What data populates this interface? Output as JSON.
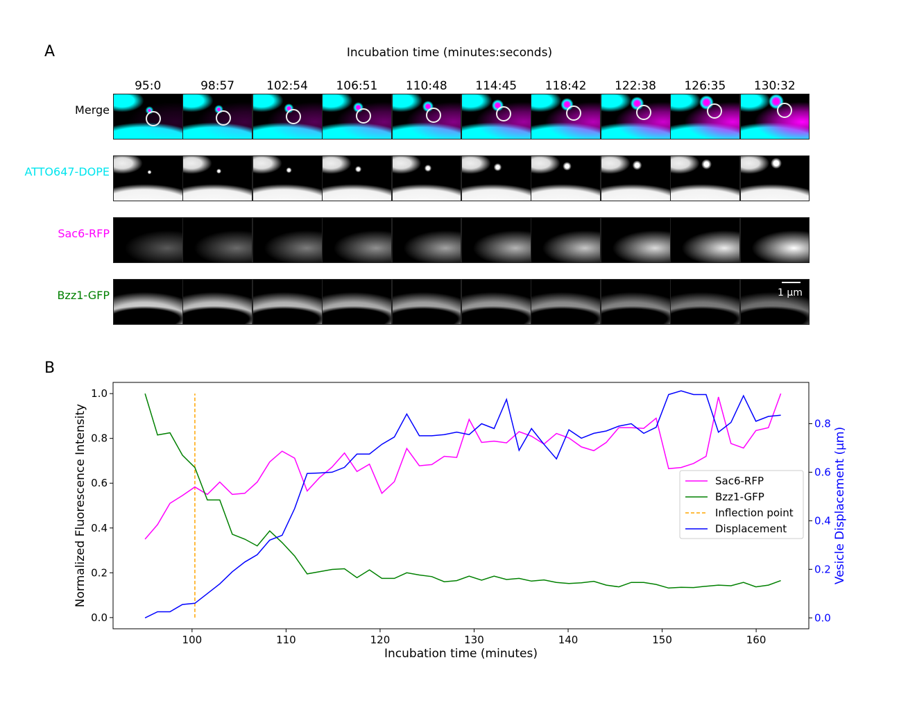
{
  "panel_a": {
    "letter": "A",
    "header": "Incubation time (minutes:seconds)",
    "timepoints": [
      "95:0",
      "98:57",
      "102:54",
      "106:51",
      "110:48",
      "114:45",
      "118:42",
      "122:38",
      "126:35",
      "130:32"
    ],
    "rows": [
      {
        "label": "Merge",
        "color": "#000000"
      },
      {
        "label": "ATTO647-DOPE",
        "color": "#00e5ee"
      },
      {
        "label": "Sac6-RFP",
        "color": "#ff00ff"
      },
      {
        "label": "Bzz1-GFP",
        "color": "#008000"
      }
    ],
    "scale_bar": "1 μm",
    "merge_colors": {
      "cyan": "#00ffff",
      "magenta": "#ff00ff"
    }
  },
  "panel_b": {
    "letter": "B"
  },
  "chart_data": {
    "type": "line",
    "xlabel": "Incubation time (minutes)",
    "ylabel": "Normalized Fluorescence Intensity",
    "y2label": "Vesicle Displacement (μm)",
    "xlim": [
      91.6,
      165.6
    ],
    "ylim": [
      -0.05,
      1.05
    ],
    "y2lim": [
      -0.045,
      0.97
    ],
    "xticks": [
      100,
      110,
      120,
      130,
      140,
      150,
      160
    ],
    "yticks": [
      0.0,
      0.2,
      0.4,
      0.6,
      0.8,
      1.0
    ],
    "y2ticks": [
      0.0,
      0.2,
      0.4,
      0.6,
      0.8
    ],
    "legend_position": "center-right",
    "x": [
      95.0,
      96.33,
      97.65,
      98.98,
      100.3,
      101.63,
      102.95,
      104.28,
      105.61,
      106.93,
      108.26,
      109.58,
      110.91,
      112.24,
      113.56,
      114.89,
      116.21,
      117.54,
      118.87,
      120.19,
      121.52,
      122.84,
      124.17,
      125.5,
      126.82,
      128.15,
      129.47,
      130.8,
      132.13,
      133.45,
      134.78,
      136.1,
      137.43,
      138.76,
      140.08,
      141.41,
      142.73,
      144.06,
      145.39,
      146.71,
      148.04,
      149.36,
      150.69,
      152.02,
      153.34,
      154.67,
      155.99,
      157.32,
      158.65,
      159.97,
      161.3,
      162.62
    ],
    "series": [
      {
        "name": "Sac6-RFP",
        "axis": "left",
        "color": "#ff00ff",
        "dashed": false,
        "values": [
          0.35,
          0.415,
          0.51,
          0.545,
          0.583,
          0.55,
          0.605,
          0.55,
          0.555,
          0.605,
          0.695,
          0.743,
          0.712,
          0.565,
          0.625,
          0.672,
          0.735,
          0.652,
          0.685,
          0.555,
          0.607,
          0.755,
          0.678,
          0.683,
          0.72,
          0.715,
          0.885,
          0.782,
          0.788,
          0.78,
          0.83,
          0.81,
          0.775,
          0.822,
          0.802,
          0.762,
          0.745,
          0.782,
          0.848,
          0.848,
          0.845,
          0.89,
          0.665,
          0.67,
          0.688,
          0.72,
          0.985,
          0.777,
          0.757,
          0.835,
          0.848,
          1.0
        ]
      },
      {
        "name": "Bzz1-GFP",
        "axis": "left",
        "color": "#008000",
        "dashed": false,
        "values": [
          1.0,
          0.815,
          0.825,
          0.725,
          0.67,
          0.525,
          0.525,
          0.372,
          0.35,
          0.32,
          0.387,
          0.335,
          0.275,
          0.195,
          0.205,
          0.215,
          0.218,
          0.178,
          0.213,
          0.175,
          0.175,
          0.2,
          0.19,
          0.183,
          0.16,
          0.165,
          0.185,
          0.167,
          0.185,
          0.17,
          0.175,
          0.163,
          0.168,
          0.157,
          0.152,
          0.155,
          0.162,
          0.145,
          0.137,
          0.157,
          0.157,
          0.148,
          0.132,
          0.135,
          0.134,
          0.14,
          0.145,
          0.142,
          0.157,
          0.137,
          0.145,
          0.165
        ]
      },
      {
        "name": "Displacement",
        "axis": "right",
        "color": "#0000ff",
        "dashed": false,
        "values": [
          0.0,
          0.025,
          0.025,
          0.055,
          0.06,
          0.1,
          0.14,
          0.19,
          0.23,
          0.26,
          0.32,
          0.34,
          0.45,
          0.595,
          0.597,
          0.6,
          0.62,
          0.675,
          0.675,
          0.715,
          0.745,
          0.84,
          0.75,
          0.75,
          0.755,
          0.765,
          0.755,
          0.8,
          0.78,
          0.9,
          0.69,
          0.78,
          0.715,
          0.655,
          0.775,
          0.74,
          0.76,
          0.77,
          0.79,
          0.8,
          0.76,
          0.785,
          0.92,
          0.935,
          0.92,
          0.92,
          0.765,
          0.805,
          0.915,
          0.81,
          0.83,
          0.835
        ]
      }
    ],
    "annotations": [
      {
        "name": "Inflection point",
        "type": "vline",
        "x": 100.3,
        "y_range": [
          0.0,
          1.0
        ],
        "color": "#ffa500",
        "dashed": true
      }
    ],
    "legend": [
      "Sac6-RFP",
      "Bzz1-GFP",
      "Inflection point",
      "Displacement"
    ]
  }
}
